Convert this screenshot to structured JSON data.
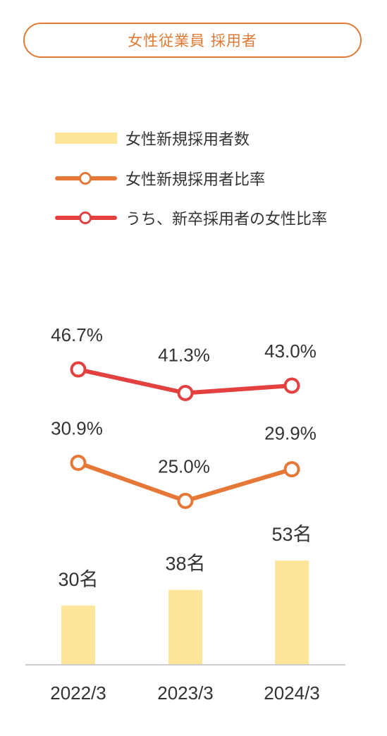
{
  "title": "女性従業員 採用者",
  "colors": {
    "accent": "#e07a34",
    "bar": "#fde59a",
    "orange_line": "#e57836",
    "red_line": "#e4403f",
    "axis": "#cccccc"
  },
  "legend": [
    {
      "label": "女性新規採用者数",
      "kind": "bar"
    },
    {
      "label": "女性新規採用者比率",
      "kind": "line-orange"
    },
    {
      "label": "うち、新卒採用者の女性比率",
      "kind": "line-red"
    }
  ],
  "chart_data": {
    "type": "bar+line",
    "categories": [
      "2022/3",
      "2023/3",
      "2024/3"
    ],
    "series": [
      {
        "name": "女性新規採用者数",
        "type": "bar",
        "values": [
          30,
          38,
          53
        ],
        "labels": [
          "30名",
          "38名",
          "53名"
        ]
      },
      {
        "name": "女性新規採用者比率",
        "type": "line",
        "values": [
          30.9,
          25.0,
          29.9
        ],
        "labels": [
          "30.9%",
          "25.0%",
          "29.9%"
        ]
      },
      {
        "name": "うち、新卒採用者の女性比率",
        "type": "line",
        "values": [
          46.7,
          41.3,
          43.0
        ],
        "labels": [
          "46.7%",
          "41.3%",
          "43.0%"
        ]
      }
    ],
    "legend_position": "top-left",
    "grid": false
  }
}
